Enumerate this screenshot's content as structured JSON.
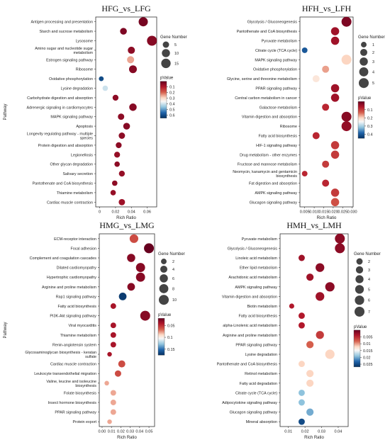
{
  "chart_data": [
    {
      "type": "scatter",
      "title": "HFG_vs_LFG",
      "xlabel": "Rich Ratio",
      "ylabel": "Pathway",
      "xlim": [
        -0.005,
        0.072
      ],
      "xticks": [
        "0",
        "0.02",
        "0.04",
        "0.06"
      ],
      "categories": [
        "Antigen processing and presentation",
        "Starch and sucrose metabolism",
        "Lysosome",
        "Amino sugar and nucleotide sugar metabolism",
        "Estrogen signaling pathway",
        "Ribosome",
        "Oxidative phosphorylation",
        "Lysine degradation",
        "Carbohydrate digestion and absorption",
        "Adrenergic signaling in cardiomyocytes",
        "MAPK signaling pathway",
        "Apoptosis",
        "Longevity regulating pathway - multiple species",
        "Protein digestion and absorption",
        "Legionellosis",
        "Other glycan degradation",
        "Salivary secretion",
        "Pantothenate and CoA biosynthesis",
        "Thiamine metabolism",
        "Cardiac muscle contraction"
      ],
      "x": [
        0.055,
        0.03,
        0.066,
        0.04,
        0.039,
        0.042,
        0.002,
        0.007,
        0.02,
        0.042,
        0.027,
        0.034,
        0.028,
        0.024,
        0.022,
        0.022,
        0.028,
        0.019,
        0.017,
        0.028
      ],
      "gene_number": [
        14,
        6,
        17,
        7,
        7,
        9,
        2,
        3,
        4,
        8,
        5,
        6,
        5,
        4,
        4,
        3,
        4,
        3,
        3,
        5
      ],
      "pvalue": [
        0.02,
        0.03,
        0.04,
        0.05,
        0.25,
        0.04,
        0.6,
        0.4,
        0.05,
        0.04,
        0.05,
        0.04,
        0.05,
        0.05,
        0.06,
        0.05,
        0.06,
        0.05,
        0.06,
        0.07
      ],
      "size_legend": {
        "title": "Gene Number",
        "values": [
          5,
          10,
          15
        ]
      },
      "color_legend": {
        "title": "pValue",
        "ticks": [
          0.1,
          0.2,
          0.3,
          0.4,
          0.5,
          0.6
        ],
        "range": [
          0,
          0.65
        ]
      }
    },
    {
      "type": "scatter",
      "title": "HFH_vs_LFH",
      "xlabel": "Rich Ratio",
      "ylabel": "",
      "xlim": [
        0.0025,
        0.0305
      ],
      "xticks": [
        "0.005",
        "0.010",
        "0.015",
        "0.020",
        "0.025",
        "0.030"
      ],
      "categories": [
        "Glycolysis / Gluconeogenesis",
        "Pantothenate and CoA biosynthesis",
        "Pyruvate metabolism",
        "Citrate cycle (TCA cycle)",
        "MAPK signaling pathway",
        "Oxidative phosphorylation",
        "Glycine, serine and threonine metabolism",
        "PPAR signaling pathway",
        "Central carbon metabolism in cancer",
        "Galactose metabolism",
        "Vitamin digestion and absorption",
        "Ribosome",
        "Fatty acid biosynthesis",
        "HIF-1 signaling pathway",
        "Drug metabolism - other enzymes",
        "Fructose and mannose metabolism",
        "Neomycin, kanamycin and gentamicin biosynthesis",
        "Fat digestion and absorption",
        "AMPK signaling pathway",
        "Glucagon signaling pathway"
      ],
      "x": [
        0.027,
        0.021,
        0.021,
        0.005,
        0.027,
        0.016,
        0.011,
        0.021,
        0.021,
        0.016,
        0.027,
        0.027,
        0.011,
        0.021,
        0.021,
        0.016,
        0.005,
        0.016,
        0.021,
        0.021
      ],
      "gene_number": [
        5,
        3,
        3,
        1,
        5,
        2,
        2,
        3,
        3,
        2,
        5,
        5,
        2,
        3,
        3,
        2,
        1,
        2,
        3,
        3
      ],
      "pvalue": [
        0.02,
        0.05,
        0.05,
        0.4,
        0.2,
        0.17,
        0.22,
        0.05,
        0.05,
        0.08,
        0.03,
        0.04,
        0.08,
        0.1,
        0.1,
        0.1,
        0.08,
        0.08,
        0.1,
        0.12
      ],
      "size_legend": {
        "title": "Gene Number",
        "values": [
          1,
          2,
          3,
          4,
          5
        ]
      },
      "color_legend": {
        "title": "pValue",
        "ticks": [
          0.1,
          0.2,
          0.3,
          0.4
        ],
        "range": [
          0,
          0.45
        ]
      }
    },
    {
      "type": "scatter",
      "title": "HMG_vs_LMG",
      "xlabel": "Rich Ratio",
      "ylabel": "Pathway",
      "xlim": [
        -0.003,
        0.056
      ],
      "xticks": [
        "0.00",
        "0.01",
        "0.02",
        "0.03",
        "0.04",
        "0.05"
      ],
      "categories": [
        "ECM-receptor interaction",
        "Focal adhesion",
        "Complement and coagulation cascades",
        "Dilated cardiomyopathy",
        "Hypertrophic cardiomyopathy",
        "Arginine and proline metabolism",
        "Rap1 signaling pathway",
        "Fatty acid biosynthesis",
        "PI3K-Akt signaling pathway",
        "Viral myocarditis",
        "Thiamine metabolism",
        "Renin-angiotensin system",
        "Glycosaminoglycan biosynthesis - keratan sulfate",
        "Cardiac muscle contraction",
        "Leukocyte transendothelial migration",
        "Valine, leucine and isoleucine biosynthesis",
        "Folate biosynthesis",
        "Insect hormone biosynthesis",
        "PPAR signaling pathway",
        "Protein export"
      ],
      "x": [
        0.034,
        0.05,
        0.031,
        0.041,
        0.041,
        0.031,
        0.022,
        0.012,
        0.046,
        0.012,
        0.012,
        0.012,
        0.008,
        0.021,
        0.017,
        0.005,
        0.012,
        0.012,
        0.012,
        0.008
      ],
      "gene_number": [
        7,
        10,
        6,
        8,
        8,
        5,
        5,
        2,
        10,
        2,
        2,
        2,
        1,
        4,
        3,
        1,
        2,
        2,
        2,
        1
      ],
      "pvalue": [
        0.06,
        0.02,
        0.03,
        0.03,
        0.03,
        0.03,
        0.17,
        0.04,
        0.03,
        0.04,
        0.04,
        0.04,
        0.04,
        0.06,
        0.06,
        0.08,
        0.08,
        0.08,
        0.08,
        0.08
      ],
      "size_legend": {
        "title": "Gene Number",
        "values": [
          2,
          4,
          6,
          8,
          10
        ]
      },
      "color_legend": {
        "title": "pValue",
        "ticks": [
          0.05,
          0.1,
          0.15
        ],
        "range": [
          0.02,
          0.175
        ]
      }
    },
    {
      "type": "scatter",
      "title": "HMH_vs_LMH",
      "xlabel": "Rich Ratio",
      "ylabel": "",
      "xlim": [
        0.005,
        0.046
      ],
      "xticks": [
        "0.01",
        "0.02",
        "0.03",
        "0.04"
      ],
      "categories": [
        "Pyruvate metabolism",
        "Glycolysis / Gluconeogenesis",
        "Linoleic acid metabolism",
        "Ether lipid metabolism",
        "Arachidonic acid metabolism",
        "AMPK signaling pathway",
        "Vitamin digestion and absorption",
        "Biotin metabolism",
        "Fatty acid biosynthesis",
        "alpha-Linolenic acid metabolism",
        "Arginine and proline metabolism",
        "PPAR signaling pathway",
        "Lysine degradation",
        "Pantothenate and CoA biosynthesis",
        "Retinol metabolism",
        "Fatty acid degradation",
        "Citrate cycle (TCA cycle)",
        "Adipocytokine signaling pathway",
        "Glucagon signaling pathway",
        "Mineral absorption"
      ],
      "x": [
        0.041,
        0.041,
        0.018,
        0.029,
        0.023,
        0.035,
        0.029,
        0.012,
        0.018,
        0.018,
        0.029,
        0.023,
        0.035,
        0.018,
        0.023,
        0.023,
        0.018,
        0.018,
        0.023,
        0.018
      ],
      "gene_number": [
        7,
        7,
        2,
        5,
        3,
        6,
        5,
        1,
        2,
        2,
        4,
        3,
        6,
        2,
        3,
        3,
        2,
        2,
        3,
        2
      ],
      "pvalue": [
        0.002,
        0.002,
        0.003,
        0.002,
        0.003,
        0.002,
        0.003,
        0.004,
        0.004,
        0.004,
        0.006,
        0.008,
        0.012,
        0.012,
        0.012,
        0.012,
        0.019,
        0.019,
        0.02,
        0.025
      ],
      "size_legend": {
        "title": "Gene Number",
        "values": [
          2,
          3,
          4,
          5,
          6,
          7
        ]
      },
      "color_legend": {
        "title": "pValue",
        "ticks": [
          0.005,
          0.01,
          0.015,
          0.02,
          0.025
        ],
        "range": [
          0,
          0.027
        ]
      }
    }
  ]
}
